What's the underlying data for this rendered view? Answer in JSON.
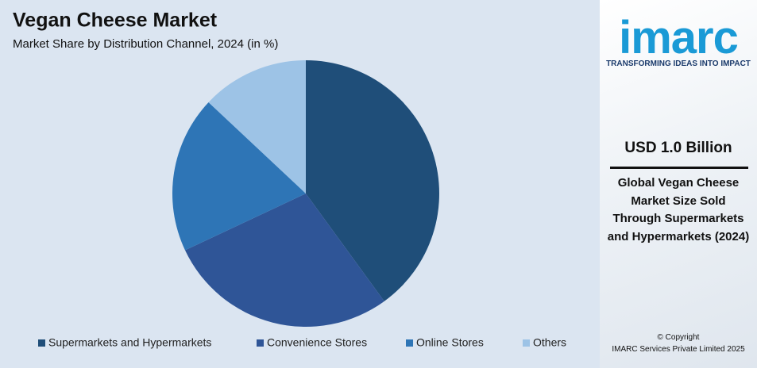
{
  "chart_data": {
    "type": "pie",
    "title": "Vegan Cheese Market",
    "subtitle": "Market Share by Distribution Channel, 2024 (in %)",
    "categories": [
      "Supermarkets and Hypermarkets",
      "Convenience Stores",
      "Online Stores",
      "Others"
    ],
    "values": [
      40,
      28,
      19,
      13
    ],
    "colors": [
      "#1f4e79",
      "#2f5597",
      "#2e75b6",
      "#9dc3e6"
    ],
    "legend": "bottom"
  },
  "sidebar": {
    "logo": "imarc",
    "tagline": "TRANSFORMING IDEAS INTO IMPACT",
    "stat": "USD 1.0 Billion",
    "description": "Global Vegan Cheese Market Size Sold Through Supermarkets and Hypermarkets (2024)",
    "copyright": "© Copyright",
    "company": "IMARC Services Private Limited 2025"
  }
}
